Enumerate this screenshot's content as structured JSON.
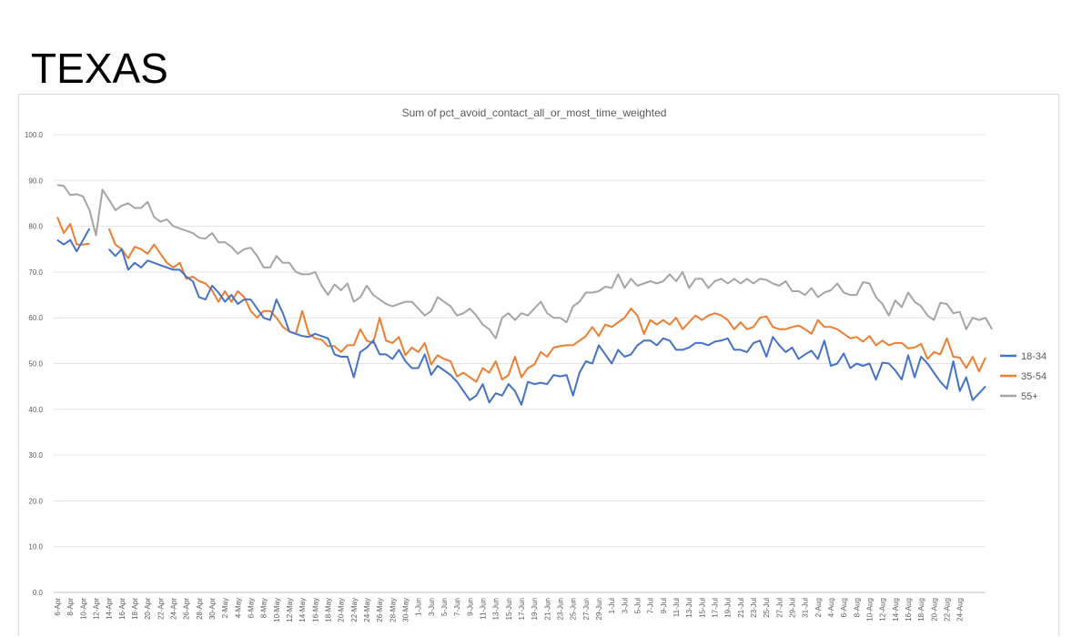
{
  "slide_title": "TEXAS",
  "chart_data": {
    "type": "line",
    "title": "Sum of pct_avoid_contact_all_or_most_time_weighted",
    "xlabel": "",
    "ylabel": "",
    "ylim": [
      0,
      100
    ],
    "yticks": [
      "0.0",
      "10.0",
      "20.0",
      "30.0",
      "40.0",
      "50.0",
      "60.0",
      "70.0",
      "80.0",
      "90.0",
      "100.0"
    ],
    "grid": true,
    "legend_position": "right",
    "tick_labels": [
      "6-Apr",
      "8-Apr",
      "10-Apr",
      "12-Apr",
      "14-Apr",
      "16-Apr",
      "18-Apr",
      "20-Apr",
      "22-Apr",
      "24-Apr",
      "26-Apr",
      "28-Apr",
      "30-Apr",
      "2-May",
      "4-May",
      "6-May",
      "8-May",
      "10-May",
      "12-May",
      "14-May",
      "16-May",
      "18-May",
      "20-May",
      "22-May",
      "24-May",
      "26-May",
      "28-May",
      "30-May",
      "1-Jun",
      "3-Jun",
      "5-Jun",
      "7-Jun",
      "9-Jun",
      "11-Jun",
      "13-Jun",
      "15-Jun",
      "17-Jun",
      "19-Jun",
      "21-Jun",
      "23-Jun",
      "25-Jun",
      "27-Jun",
      "29-Jun",
      "1-Jul",
      "3-Jul",
      "5-Jul",
      "7-Jul",
      "9-Jul",
      "11-Jul",
      "13-Jul",
      "15-Jul",
      "17-Jul",
      "19-Jul",
      "21-Jul",
      "23-Jul",
      "25-Jul",
      "27-Jul",
      "29-Jul",
      "31-Jul",
      "2-Aug",
      "4-Aug",
      "6-Aug",
      "8-Aug",
      "10-Aug",
      "12-Aug",
      "14-Aug",
      "16-Aug",
      "18-Aug",
      "20-Aug",
      "22-Aug",
      "24-Aug"
    ],
    "x_start_day": 0,
    "series": [
      {
        "name": "18-34",
        "color": "#4472c4",
        "values": [
          77,
          76,
          77,
          74.5,
          77,
          79.5,
          null,
          null,
          75,
          73.5,
          75,
          70.5,
          72,
          71,
          72.5,
          72,
          71.5,
          71,
          70.5,
          70.5,
          69,
          68,
          64.5,
          64,
          67,
          65.5,
          63.5,
          65,
          63,
          64,
          64,
          62,
          60,
          59.5,
          64,
          61,
          57,
          56.5,
          56,
          55.8,
          56.5,
          56,
          55.5,
          52,
          51.5,
          51.5,
          47,
          52.5,
          53.5,
          55,
          52,
          52,
          51,
          53,
          50.5,
          49,
          49,
          52,
          47.5,
          49.5,
          48.5,
          47.5,
          46,
          44,
          42,
          43,
          45.5,
          41.5,
          43.5,
          43,
          45.5,
          44,
          41,
          46,
          45.5,
          45.8,
          45.5,
          47.5,
          47.2,
          47.5,
          43,
          48,
          50.5,
          50,
          54,
          52,
          50,
          53,
          51.5,
          52,
          54,
          55,
          55,
          54,
          55.5,
          55,
          53,
          53,
          53.5,
          54.5,
          54.5,
          54,
          54.8,
          55,
          55.5,
          53,
          53,
          52.5,
          54.5,
          55,
          51.5,
          55.8,
          54,
          52.5,
          53.5,
          51,
          52,
          52.8,
          51,
          55,
          49.5,
          50,
          52.2,
          49,
          50,
          49.5,
          50,
          46.5,
          50.2,
          50,
          48.5,
          46.5,
          51.8,
          47,
          51.5,
          50,
          48,
          46,
          44.5,
          50.5,
          44,
          47,
          42,
          43.5,
          45
        ]
      },
      {
        "name": "35-54",
        "color": "#ed7d31",
        "values": [
          82,
          78.5,
          80.5,
          76,
          76,
          76.2,
          null,
          null,
          79.5,
          76,
          75,
          73,
          75.5,
          75,
          74,
          76,
          74,
          72,
          71,
          72,
          68.5,
          69,
          68,
          67.5,
          66,
          63.5,
          65.8,
          63.5,
          65.8,
          64.5,
          61.5,
          60,
          61.5,
          61.5,
          60,
          58,
          57,
          56.5,
          61.5,
          56.5,
          55.5,
          55.2,
          53.8,
          53.8,
          52.5,
          54,
          54,
          57.5,
          55,
          54.5,
          60,
          55,
          54.5,
          55.8,
          51.8,
          53.5,
          52.5,
          54.5,
          49.8,
          51.8,
          51,
          50.5,
          47.2,
          48,
          47,
          46,
          49,
          48,
          50.5,
          46.5,
          47.5,
          51.5,
          47,
          49,
          49.8,
          52.5,
          51.5,
          53.5,
          53.8,
          54,
          54,
          55,
          56,
          58,
          56,
          58.5,
          58,
          59,
          60,
          62,
          60.5,
          56.5,
          59.5,
          58.5,
          59.5,
          58.5,
          60,
          57.5,
          59,
          60.5,
          59.5,
          60.5,
          61,
          60.5,
          59.5,
          57.5,
          59,
          57.5,
          58,
          60,
          60.3,
          58,
          57.5,
          57.5,
          58,
          58.3,
          57.5,
          56.5,
          59.5,
          58,
          58,
          57.5,
          56.5,
          55.5,
          55.8,
          54.8,
          56,
          54,
          55,
          54,
          54.5,
          54.5,
          53.3,
          53.5,
          54.3,
          51,
          52.5,
          52,
          55.5,
          51.5,
          51.3,
          49,
          51.5,
          48.3,
          51.3
        ]
      },
      {
        "name": "55+",
        "color": "#a5a5a5",
        "values": [
          89,
          88.8,
          86.8,
          87,
          86.5,
          83.5,
          78,
          88,
          85.8,
          83.5,
          84.5,
          85,
          84,
          84,
          85.3,
          82,
          81,
          81.5,
          80,
          79.5,
          79,
          78.5,
          77.5,
          77.3,
          78.5,
          76.5,
          76.5,
          75.5,
          74,
          75,
          75.3,
          73.5,
          71,
          71,
          73.5,
          72,
          72,
          70,
          69.5,
          69.5,
          70,
          67,
          65,
          67.3,
          66,
          67.5,
          63.5,
          64.5,
          67,
          65,
          64,
          63,
          62.5,
          63,
          63.5,
          63.5,
          62,
          60.5,
          61.5,
          64.5,
          63.5,
          62.5,
          60.5,
          61,
          62,
          60.5,
          58.5,
          57.5,
          55.5,
          60,
          61,
          59.5,
          61,
          60.5,
          62,
          63.5,
          61,
          60,
          60,
          59,
          62.5,
          63.5,
          65.5,
          65.5,
          65.8,
          66.8,
          66.5,
          69.5,
          66.5,
          68.5,
          67,
          67.5,
          68,
          67.5,
          68,
          69.5,
          68,
          70,
          66.5,
          68.5,
          68.5,
          66.5,
          68,
          68.5,
          67.5,
          68.5,
          67.5,
          68.5,
          67.5,
          68.5,
          68.3,
          67.5,
          67,
          68,
          65.8,
          65.8,
          65,
          66.5,
          64.5,
          65.5,
          66,
          67.5,
          65.5,
          65,
          65,
          67.8,
          67.5,
          64.5,
          63,
          60.5,
          63.8,
          62.3,
          65.5,
          63.5,
          62.5,
          60.5,
          59.5,
          63.3,
          63,
          61,
          61.3,
          57.5,
          60,
          59.5,
          60,
          57.5
        ]
      }
    ]
  }
}
